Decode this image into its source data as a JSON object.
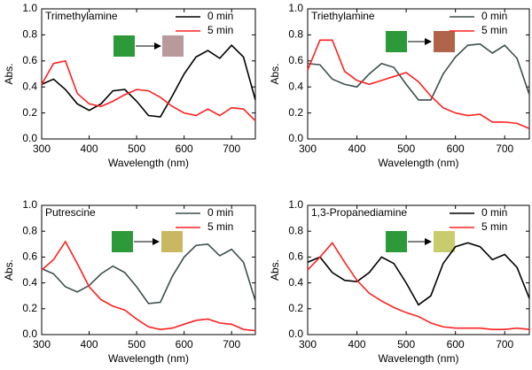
{
  "chart_data": [
    {
      "type": "line",
      "title": "Trimethylamine",
      "xlabel": "Wavelength (nm)",
      "ylabel": "Abs.",
      "x": [
        300,
        325,
        350,
        375,
        400,
        425,
        450,
        475,
        500,
        525,
        550,
        575,
        600,
        625,
        650,
        675,
        700,
        725,
        750
      ],
      "series": [
        {
          "name": "0 min",
          "color": "#000000",
          "values": [
            0.42,
            0.46,
            0.38,
            0.27,
            0.22,
            0.27,
            0.37,
            0.38,
            0.29,
            0.18,
            0.17,
            0.33,
            0.5,
            0.63,
            0.68,
            0.62,
            0.72,
            0.63,
            0.3
          ]
        },
        {
          "name": "5 min",
          "color": "#ff2020",
          "values": [
            0.42,
            0.58,
            0.6,
            0.35,
            0.27,
            0.25,
            0.29,
            0.34,
            0.38,
            0.37,
            0.32,
            0.25,
            0.2,
            0.18,
            0.23,
            0.18,
            0.24,
            0.23,
            0.14
          ]
        }
      ],
      "xlim": [
        300,
        750
      ],
      "xticks": [
        300,
        400,
        500,
        600,
        700
      ],
      "ylim": [
        0,
        1
      ],
      "yticks": [
        {
          "value": 0,
          "label": "0.0"
        },
        0.2,
        0.4,
        0.6,
        0.8,
        {
          "value": 1,
          "label": "1.0"
        }
      ],
      "legend": "upper right"
    },
    {
      "type": "line",
      "title": "Triethylamine",
      "xlabel": "Wavelength (nm)",
      "ylabel": "Abs.",
      "x": [
        300,
        325,
        350,
        375,
        400,
        425,
        450,
        475,
        500,
        525,
        550,
        575,
        600,
        625,
        650,
        675,
        700,
        725,
        750
      ],
      "series": [
        {
          "name": "0 min",
          "color": "#3e4e4e",
          "values": [
            0.58,
            0.57,
            0.46,
            0.42,
            0.4,
            0.5,
            0.58,
            0.55,
            0.42,
            0.3,
            0.3,
            0.5,
            0.63,
            0.72,
            0.73,
            0.66,
            0.72,
            0.62,
            0.34
          ]
        },
        {
          "name": "5 min",
          "color": "#ff2020",
          "values": [
            0.53,
            0.76,
            0.76,
            0.52,
            0.45,
            0.42,
            0.45,
            0.48,
            0.51,
            0.44,
            0.33,
            0.24,
            0.2,
            0.18,
            0.19,
            0.13,
            0.13,
            0.12,
            0.08
          ]
        }
      ],
      "xlim": [
        300,
        750
      ],
      "xticks": [
        300,
        400,
        500,
        600,
        700
      ],
      "ylim": [
        0,
        1
      ],
      "yticks": [
        {
          "value": 0,
          "label": "0.0"
        },
        0.2,
        0.4,
        0.6,
        0.8,
        {
          "value": 1,
          "label": "1.0"
        }
      ],
      "legend": "upper right"
    },
    {
      "type": "line",
      "title": "Putrescine",
      "xlabel": "Wavelength (nm)",
      "ylabel": "Abs.",
      "x": [
        300,
        325,
        350,
        375,
        400,
        425,
        450,
        475,
        500,
        525,
        550,
        575,
        600,
        625,
        650,
        675,
        700,
        725,
        750
      ],
      "series": [
        {
          "name": "0 min",
          "color": "#3e4e4e",
          "values": [
            0.51,
            0.47,
            0.37,
            0.33,
            0.38,
            0.47,
            0.53,
            0.48,
            0.37,
            0.24,
            0.25,
            0.45,
            0.6,
            0.69,
            0.7,
            0.61,
            0.66,
            0.56,
            0.26
          ]
        },
        {
          "name": "5 min",
          "color": "#ff2020",
          "values": [
            0.5,
            0.58,
            0.72,
            0.55,
            0.37,
            0.27,
            0.22,
            0.19,
            0.12,
            0.06,
            0.04,
            0.05,
            0.08,
            0.11,
            0.12,
            0.09,
            0.08,
            0.04,
            0.03
          ]
        }
      ],
      "xlim": [
        300,
        750
      ],
      "xticks": [
        300,
        400,
        500,
        600,
        700
      ],
      "ylim": [
        0,
        1
      ],
      "yticks": [
        {
          "value": 0,
          "label": "0.0"
        },
        0.2,
        0.4,
        0.6,
        0.8,
        {
          "value": 1,
          "label": "1.0"
        }
      ],
      "legend": "upper right"
    },
    {
      "type": "line",
      "title": "1,3-Propanediamine",
      "xlabel": "Wavelength (nm)",
      "ylabel": "Abs.",
      "x": [
        300,
        325,
        350,
        375,
        400,
        425,
        450,
        475,
        500,
        525,
        550,
        575,
        600,
        625,
        650,
        675,
        700,
        725,
        750
      ],
      "series": [
        {
          "name": "0 min",
          "color": "#000000",
          "values": [
            0.56,
            0.6,
            0.48,
            0.42,
            0.41,
            0.48,
            0.6,
            0.55,
            0.4,
            0.23,
            0.3,
            0.55,
            0.68,
            0.71,
            0.68,
            0.58,
            0.62,
            0.52,
            0.28
          ]
        },
        {
          "name": "5 min",
          "color": "#ff2020",
          "values": [
            0.5,
            0.6,
            0.71,
            0.56,
            0.42,
            0.32,
            0.26,
            0.21,
            0.17,
            0.14,
            0.09,
            0.06,
            0.05,
            0.05,
            0.05,
            0.04,
            0.04,
            0.05,
            0.04
          ]
        }
      ],
      "xlim": [
        300,
        750
      ],
      "xticks": [
        300,
        400,
        500,
        600,
        700
      ],
      "ylim": [
        0,
        1
      ],
      "yticks": [
        {
          "value": 0,
          "label": "0.0"
        },
        0.2,
        0.4,
        0.6,
        0.8,
        {
          "value": 1,
          "label": "1.0"
        }
      ],
      "legend": "upper right"
    }
  ]
}
